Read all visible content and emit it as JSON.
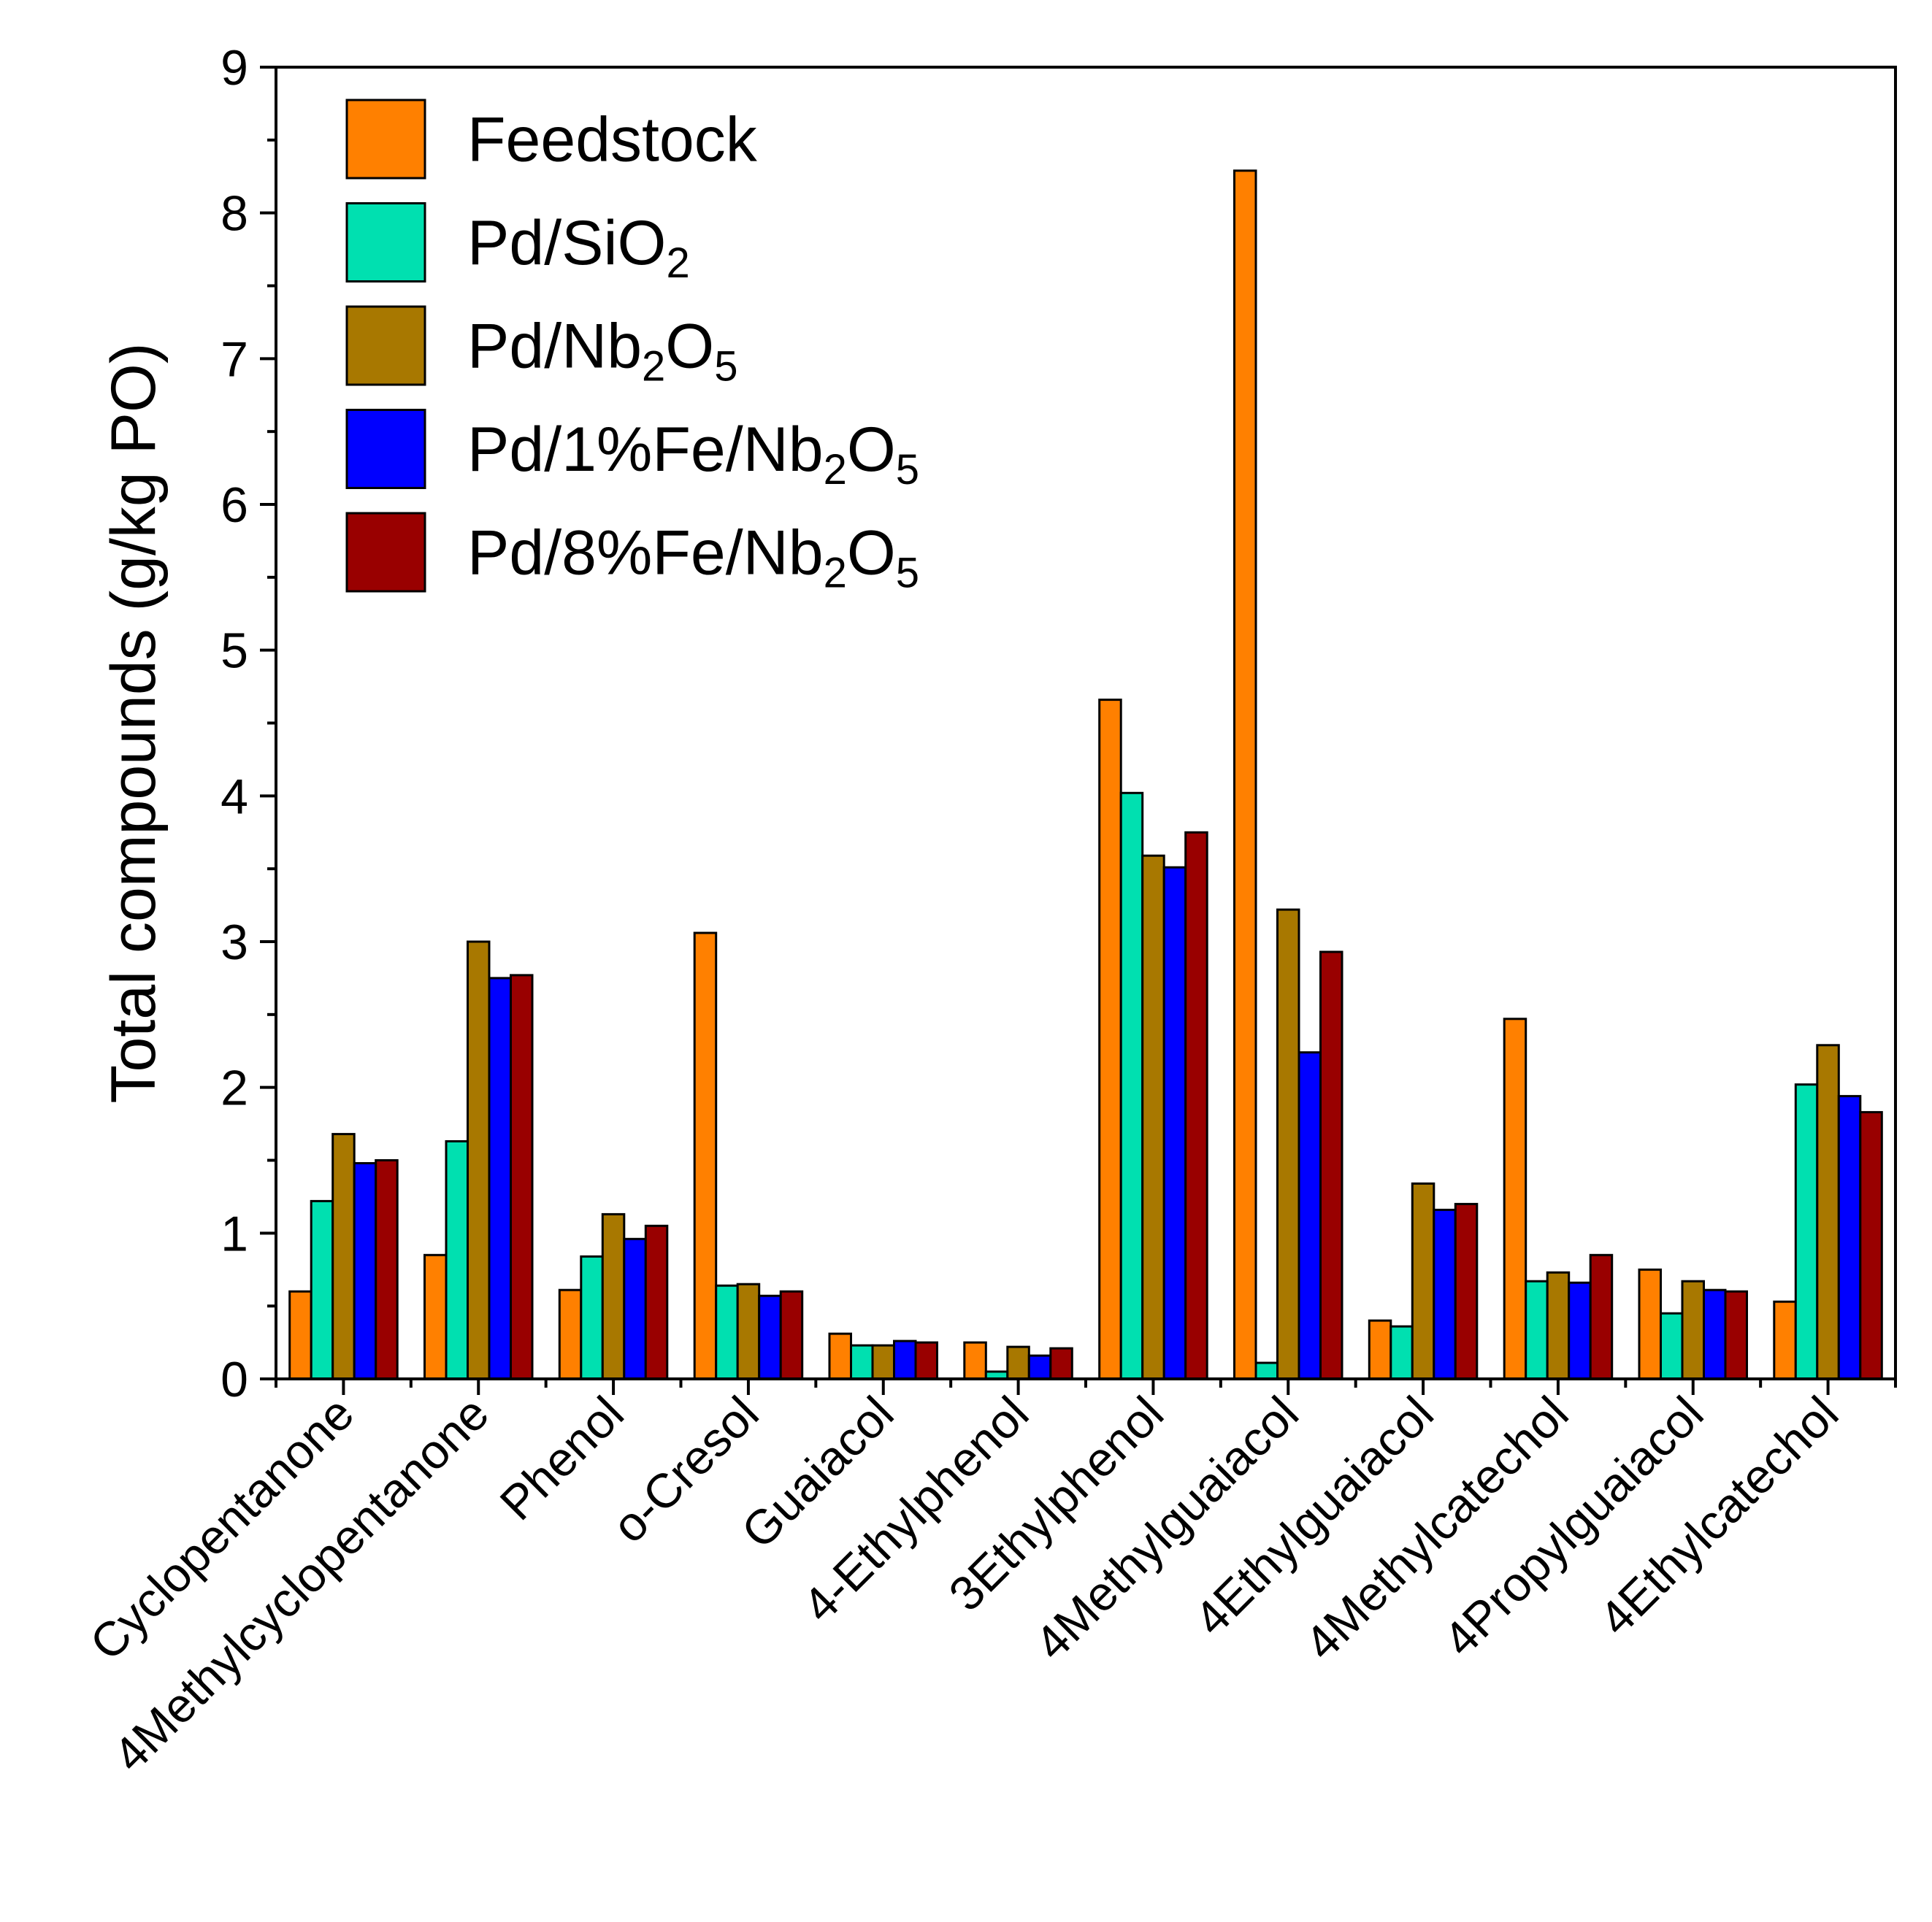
{
  "chart_data": {
    "type": "bar",
    "title": "",
    "xlabel": "",
    "ylabel": "Total compounds (g/kg PO)",
    "ylim": [
      0,
      9
    ],
    "yticks": [
      0,
      1,
      2,
      3,
      4,
      5,
      6,
      7,
      8,
      9
    ],
    "grid": false,
    "legend_position": "top-left",
    "categories": [
      "Cyclopentanone",
      "4Methylcyclopentanone",
      "Phenol",
      "o-Cresol",
      "Guaiacol",
      "4-Ethylphenol",
      "3Ethylphenol",
      "4Methylguaiacol",
      "4Ethylguaiacol",
      "4Methylcatechol",
      "4Propylguaiacol",
      "4Ethylcatechol"
    ],
    "series": [
      {
        "name": "Feedstock",
        "label_parts": [
          {
            "t": "Feedstock"
          }
        ],
        "color": "#FF8000",
        "values": [
          0.6,
          0.85,
          0.61,
          3.06,
          0.31,
          0.25,
          4.66,
          8.29,
          0.4,
          2.47,
          0.75,
          0.53
        ]
      },
      {
        "name": "Pd/SiO2",
        "label_parts": [
          {
            "t": "Pd/SiO"
          },
          {
            "t": "2",
            "sub": true
          }
        ],
        "color": "#00E0B0",
        "values": [
          1.22,
          1.63,
          0.84,
          0.64,
          0.23,
          0.05,
          4.02,
          0.11,
          0.36,
          0.67,
          0.45,
          2.02
        ]
      },
      {
        "name": "Pd/Nb2O5",
        "label_parts": [
          {
            "t": "Pd/Nb"
          },
          {
            "t": "2",
            "sub": true
          },
          {
            "t": "O"
          },
          {
            "t": "5",
            "sub": true
          }
        ],
        "color": "#A87800",
        "values": [
          1.68,
          3.0,
          1.13,
          0.65,
          0.23,
          0.22,
          3.59,
          3.22,
          1.34,
          0.73,
          0.67,
          2.29
        ]
      },
      {
        "name": "Pd/1%Fe/Nb2O5",
        "label_parts": [
          {
            "t": "Pd/1%Fe/Nb"
          },
          {
            "t": "2",
            "sub": true
          },
          {
            "t": "O"
          },
          {
            "t": "5",
            "sub": true
          }
        ],
        "color": "#0000FF",
        "values": [
          1.48,
          2.75,
          0.96,
          0.57,
          0.26,
          0.16,
          3.51,
          2.24,
          1.16,
          0.66,
          0.61,
          1.94
        ]
      },
      {
        "name": "Pd/8%Fe/Nb2O5",
        "label_parts": [
          {
            "t": "Pd/8%Fe/Nb"
          },
          {
            "t": "2",
            "sub": true
          },
          {
            "t": "O"
          },
          {
            "t": "5",
            "sub": true
          }
        ],
        "color": "#990000",
        "values": [
          1.5,
          2.77,
          1.05,
          0.6,
          0.25,
          0.21,
          3.75,
          2.93,
          1.2,
          0.85,
          0.6,
          1.83
        ]
      }
    ]
  }
}
